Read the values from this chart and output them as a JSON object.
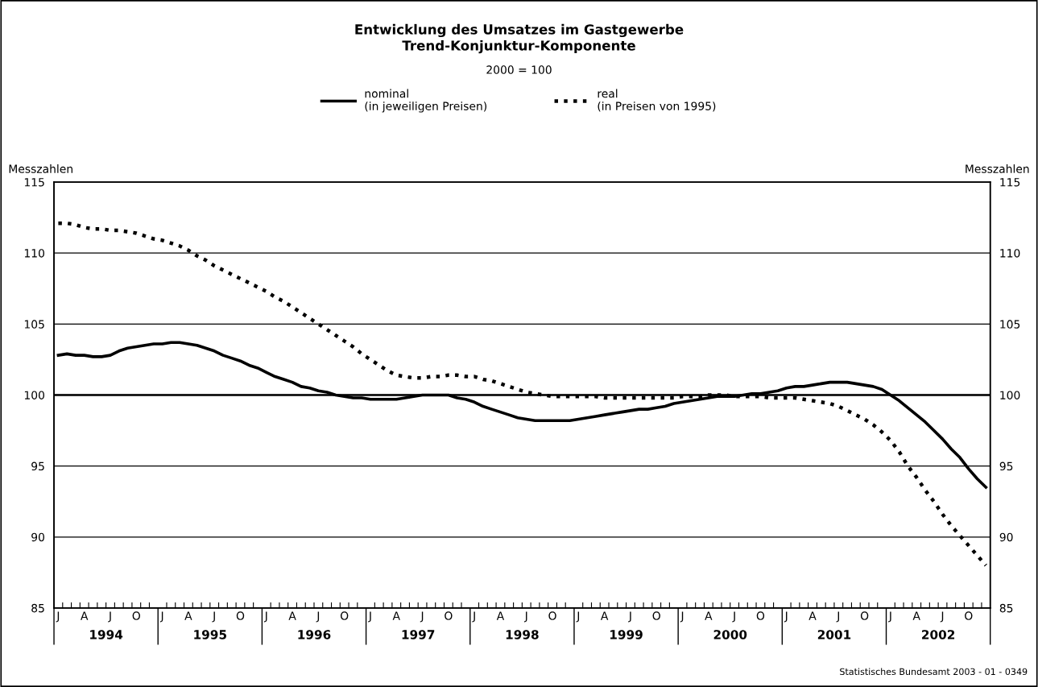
{
  "chart_data": {
    "type": "line",
    "title": "Entwicklung des Umsatzes im Gastgewerbe\nTrend-Konjunktur-Komponente",
    "subtitle": "2000 = 100",
    "ylabel": "Messzahlen",
    "y2label": "Messzahlen",
    "categories": [
      "J",
      null,
      null,
      "A",
      null,
      null,
      "J",
      null,
      null,
      "O",
      null,
      null,
      "J",
      null,
      null,
      "A",
      null,
      null,
      "J",
      null,
      null,
      "O",
      null,
      null,
      "J",
      null,
      null,
      "A",
      null,
      null,
      "J",
      null,
      null,
      "O",
      null,
      null,
      "J",
      null,
      null,
      "A",
      null,
      null,
      "J",
      null,
      null,
      "O",
      null,
      null,
      "J",
      null,
      null,
      "A",
      null,
      null,
      "J",
      null,
      null,
      "O",
      null,
      null,
      "J",
      null,
      null,
      "A",
      null,
      null,
      "J",
      null,
      null,
      "O",
      null,
      null,
      "J",
      null,
      null,
      "A",
      null,
      null,
      "J",
      null,
      null,
      "O",
      null,
      null,
      "J",
      null,
      null,
      "A",
      null,
      null,
      "J",
      null,
      null,
      "O",
      null,
      null,
      "J",
      null,
      null,
      "A",
      null,
      null,
      "J",
      null,
      null,
      "O",
      null,
      null
    ],
    "series": [
      {
        "name": "nominal\n(in jeweiligen Preisen)",
        "color": "#000000",
        "line_style": "solid",
        "values": [
          102.8,
          102.9,
          102.8,
          102.8,
          102.7,
          102.7,
          102.8,
          103.1,
          103.3,
          103.4,
          103.5,
          103.6,
          103.6,
          103.7,
          103.7,
          103.6,
          103.5,
          103.3,
          103.1,
          102.8,
          102.6,
          102.4,
          102.1,
          101.9,
          101.6,
          101.3,
          101.1,
          100.9,
          100.6,
          100.5,
          100.3,
          100.2,
          100.0,
          99.9,
          99.8,
          99.8,
          99.7,
          99.7,
          99.7,
          99.7,
          99.8,
          99.9,
          100.0,
          100.0,
          100.0,
          100.0,
          99.8,
          99.7,
          99.5,
          99.2,
          99.0,
          98.8,
          98.6,
          98.4,
          98.3,
          98.2,
          98.2,
          98.2,
          98.2,
          98.2,
          98.3,
          98.4,
          98.5,
          98.6,
          98.7,
          98.8,
          98.9,
          99.0,
          99.0,
          99.1,
          99.2,
          99.4,
          99.5,
          99.6,
          99.7,
          99.8,
          99.9,
          99.9,
          99.9,
          100.0,
          100.1,
          100.1,
          100.2,
          100.3,
          100.5,
          100.6,
          100.6,
          100.7,
          100.8,
          100.9,
          100.9,
          100.9,
          100.8,
          100.7,
          100.6,
          100.4,
          100.0,
          99.6,
          99.1,
          98.6,
          98.1,
          97.5,
          96.9,
          96.2,
          95.6,
          94.8,
          94.1,
          93.5
        ]
      },
      {
        "name": "real\n(in Preisen von 1995)",
        "color": "#000000",
        "line_style": "dotted",
        "values": [
          112.1,
          112.1,
          112.0,
          111.8,
          111.7,
          111.7,
          111.6,
          111.6,
          111.5,
          111.4,
          111.2,
          111.0,
          110.9,
          110.7,
          110.5,
          110.2,
          109.8,
          109.5,
          109.1,
          108.8,
          108.5,
          108.2,
          107.9,
          107.6,
          107.3,
          106.9,
          106.6,
          106.2,
          105.8,
          105.4,
          105.0,
          104.6,
          104.2,
          103.8,
          103.4,
          102.9,
          102.5,
          102.1,
          101.7,
          101.4,
          101.3,
          101.2,
          101.2,
          101.3,
          101.3,
          101.4,
          101.4,
          101.3,
          101.3,
          101.1,
          101.0,
          100.8,
          100.6,
          100.4,
          100.2,
          100.1,
          100.0,
          99.9,
          99.9,
          99.9,
          99.9,
          99.9,
          99.9,
          99.8,
          99.8,
          99.8,
          99.8,
          99.8,
          99.8,
          99.8,
          99.8,
          99.8,
          99.9,
          99.9,
          99.9,
          100.0,
          100.0,
          100.0,
          99.9,
          99.9,
          99.9,
          99.9,
          99.8,
          99.8,
          99.8,
          99.8,
          99.7,
          99.6,
          99.5,
          99.4,
          99.2,
          98.9,
          98.6,
          98.3,
          97.9,
          97.4,
          96.8,
          96.0,
          95.0,
          94.2,
          93.3,
          92.5,
          91.6,
          90.8,
          90.1,
          89.4,
          88.7,
          88.0
        ]
      }
    ],
    "ylim": [
      85,
      115
    ],
    "yticks": [
      85,
      90,
      95,
      100,
      105,
      110,
      115
    ],
    "y2lim": [
      85,
      115
    ],
    "y2ticks": [
      85,
      90,
      95,
      100,
      105,
      110,
      115
    ],
    "ref_lines": [
      {
        "axis": "y",
        "value": 100,
        "color": "#000000"
      }
    ],
    "grid": "y",
    "legend": "top",
    "annotations": [
      "1994",
      "1995",
      "1996",
      "1997",
      "1998",
      "1999",
      "2000",
      "2001",
      "2002",
      "Statistisches Bundesamt 2003 - 01 - 0349"
    ]
  }
}
